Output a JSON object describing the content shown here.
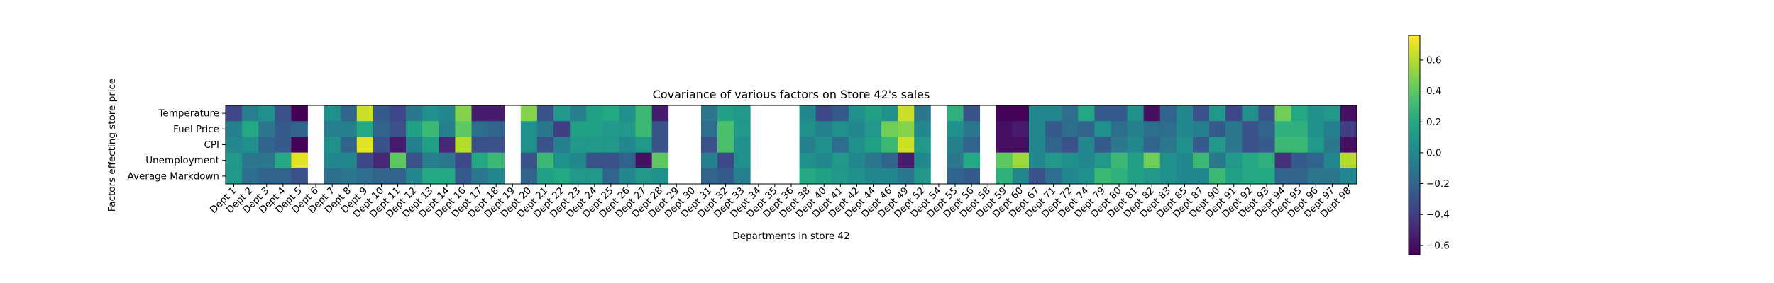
{
  "chart_data": {
    "type": "heatmap",
    "title": "Covariance of various factors on Store 42's sales",
    "xlabel": "Departments in store 42",
    "ylabel": "Factors effecting store price",
    "rows": [
      "Temperature",
      "Fuel Price",
      "CPI",
      "Unemployment",
      "Average Markdown"
    ],
    "columns": [
      "Dept 1",
      "Dept 2",
      "Dept 3",
      "Dept 4",
      "Dept 5",
      "Dept 6",
      "Dept 7",
      "Dept 8",
      "Dept 9",
      "Dept 10",
      "Dept 11",
      "Dept 12",
      "Dept 13",
      "Dept 14",
      "Dept 16",
      "Dept 17",
      "Dept 18",
      "Dept 19",
      "Dept 20",
      "Dept 21",
      "Dept 22",
      "Dept 23",
      "Dept 24",
      "Dept 25",
      "Dept 26",
      "Dept 27",
      "Dept 28",
      "Dept 29",
      "Dept 30",
      "Dept 31",
      "Dept 32",
      "Dept 33",
      "Dept 34",
      "Dept 35",
      "Dept 36",
      "Dept 38",
      "Dept 40",
      "Dept 41",
      "Dept 42",
      "Dept 44",
      "Dept 46",
      "Dept 49",
      "Dept 52",
      "Dept 54",
      "Dept 55",
      "Dept 56",
      "Dept 58",
      "Dept 59",
      "Dept 60",
      "Dept 67",
      "Dept 71",
      "Dept 72",
      "Dept 74",
      "Dept 79",
      "Dept 80",
      "Dept 81",
      "Dept 82",
      "Dept 83",
      "Dept 85",
      "Dept 87",
      "Dept 90",
      "Dept 91",
      "Dept 92",
      "Dept 93",
      "Dept 94",
      "Dept 95",
      "Dept 96",
      "Dept 97",
      "Dept 98"
    ],
    "values": [
      [
        -0.35,
        -0.05,
        0.05,
        -0.3,
        -0.68,
        null,
        0.05,
        -0.2,
        0.65,
        -0.25,
        -0.35,
        -0.1,
        0.05,
        0.0,
        0.5,
        -0.55,
        -0.55,
        null,
        0.5,
        -0.3,
        0.1,
        -0.05,
        0.15,
        0.2,
        0.05,
        0.3,
        -0.55,
        null,
        null,
        -0.1,
        0.15,
        0.1,
        null,
        null,
        null,
        0.0,
        -0.35,
        -0.25,
        0.05,
        0.15,
        0.05,
        0.65,
        -0.1,
        null,
        0.25,
        -0.3,
        null,
        -0.65,
        -0.65,
        0.0,
        0.0,
        -0.15,
        0.2,
        -0.25,
        -0.25,
        0.05,
        -0.6,
        -0.2,
        0.0,
        -0.3,
        0.1,
        -0.35,
        0.05,
        -0.3,
        0.45,
        0.2,
        0.05,
        0.1,
        -0.6
      ],
      [
        -0.05,
        0.2,
        -0.1,
        -0.25,
        -0.2,
        null,
        -0.05,
        -0.05,
        0.2,
        -0.2,
        -0.3,
        0.15,
        0.3,
        -0.05,
        0.4,
        -0.15,
        -0.2,
        null,
        0.05,
        -0.1,
        -0.4,
        0.15,
        0.15,
        0.1,
        0.1,
        0.3,
        -0.3,
        null,
        null,
        -0.15,
        0.35,
        0.1,
        null,
        null,
        null,
        0.05,
        -0.05,
        0.05,
        0.0,
        0.1,
        0.45,
        0.5,
        0.0,
        null,
        0.05,
        -0.1,
        null,
        -0.6,
        -0.55,
        0.0,
        -0.25,
        -0.15,
        -0.2,
        0.05,
        -0.15,
        -0.05,
        -0.15,
        -0.15,
        0.0,
        -0.05,
        -0.25,
        -0.1,
        -0.3,
        -0.2,
        0.25,
        0.25,
        0.05,
        -0.05,
        -0.4
      ],
      [
        0.0,
        0.05,
        -0.2,
        -0.25,
        -0.65,
        null,
        0.05,
        -0.2,
        0.7,
        -0.3,
        -0.55,
        -0.05,
        0.15,
        -0.5,
        0.6,
        -0.3,
        -0.3,
        null,
        0.05,
        -0.3,
        -0.05,
        0.1,
        0.1,
        0.1,
        0.0,
        0.1,
        -0.3,
        null,
        null,
        -0.3,
        0.35,
        0.05,
        null,
        null,
        null,
        -0.05,
        0.05,
        -0.15,
        0.05,
        0.15,
        0.3,
        0.65,
        0.1,
        null,
        -0.05,
        -0.2,
        null,
        -0.6,
        -0.6,
        0.0,
        -0.2,
        -0.3,
        0.0,
        -0.25,
        -0.1,
        0.0,
        -0.2,
        -0.1,
        0.05,
        -0.25,
        0.1,
        -0.1,
        -0.3,
        -0.25,
        0.3,
        0.3,
        0.1,
        -0.1,
        -0.6
      ],
      [
        0.1,
        -0.1,
        -0.1,
        0.2,
        0.7,
        null,
        0.0,
        0.0,
        -0.35,
        -0.5,
        0.4,
        -0.3,
        -0.05,
        -0.1,
        -0.35,
        0.2,
        0.3,
        null,
        -0.3,
        0.3,
        0.05,
        0.0,
        -0.3,
        -0.3,
        -0.2,
        -0.6,
        0.4,
        null,
        null,
        -0.05,
        -0.35,
        0.05,
        null,
        null,
        null,
        0.05,
        0.0,
        0.1,
        0.0,
        -0.1,
        -0.2,
        -0.55,
        0.0,
        null,
        -0.1,
        0.2,
        null,
        0.4,
        0.55,
        0.0,
        0.1,
        0.05,
        0.0,
        0.1,
        0.3,
        0.15,
        0.45,
        0.05,
        0.0,
        0.3,
        -0.1,
        0.1,
        0.2,
        0.25,
        -0.45,
        -0.25,
        -0.2,
        0.0,
        0.6
      ],
      [
        0.1,
        -0.15,
        -0.2,
        -0.2,
        -0.3,
        null,
        -0.15,
        -0.1,
        -0.15,
        -0.2,
        -0.2,
        0.0,
        0.2,
        0.2,
        -0.25,
        -0.1,
        0.0,
        null,
        -0.2,
        0.15,
        0.2,
        0.1,
        0.1,
        -0.2,
        0.0,
        0.1,
        0.05,
        null,
        null,
        -0.2,
        -0.25,
        -0.05,
        null,
        null,
        null,
        0.2,
        0.15,
        0.1,
        0.05,
        0.0,
        0.0,
        -0.1,
        0.1,
        null,
        -0.2,
        -0.25,
        null,
        0.25,
        0.0,
        -0.3,
        -0.15,
        0.0,
        0.05,
        0.3,
        0.25,
        0.15,
        0.1,
        0.05,
        0.0,
        0.0,
        0.3,
        0.15,
        0.2,
        0.2,
        -0.2,
        -0.2,
        -0.1,
        -0.1,
        0.0
      ]
    ],
    "vmin": -0.66,
    "vmax": 0.76,
    "colormap": "viridis",
    "colorbar_ticks": [
      "−0.6",
      "−0.4",
      "−0.2",
      "0.0",
      "0.2",
      "0.4",
      "0.6"
    ],
    "colorbar_tick_values": [
      -0.6,
      -0.4,
      -0.2,
      0.0,
      0.2,
      0.4,
      0.6
    ]
  }
}
